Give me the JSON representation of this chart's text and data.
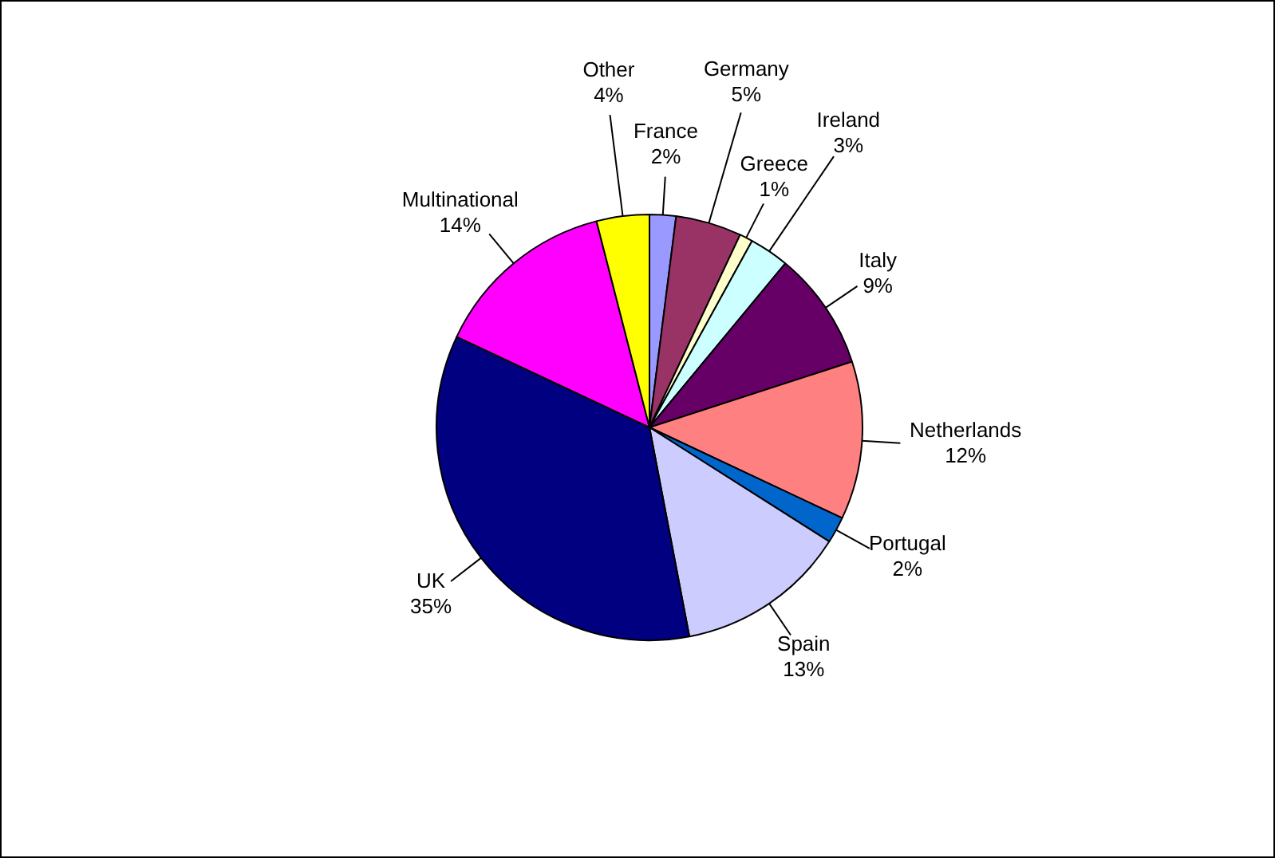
{
  "chart_data": {
    "type": "pie",
    "categories": [
      "France",
      "Germany",
      "Greece",
      "Ireland",
      "Italy",
      "Netherlands",
      "Portugal",
      "Spain",
      "UK",
      "Multinational",
      "Other"
    ],
    "values": [
      2,
      5,
      1,
      3,
      9,
      12,
      2,
      13,
      35,
      14,
      4
    ],
    "colors": [
      "#9999ff",
      "#993366",
      "#ffffcc",
      "#ccffff",
      "#660066",
      "#ff8080",
      "#0066cc",
      "#ccccff",
      "#000080",
      "#ff00ff",
      "#ffff00"
    ],
    "value_labels": [
      "2%",
      "5%",
      "1%",
      "3%",
      "9%",
      "12%",
      "2%",
      "13%",
      "35%",
      "14%",
      "4%"
    ],
    "legend": false
  }
}
